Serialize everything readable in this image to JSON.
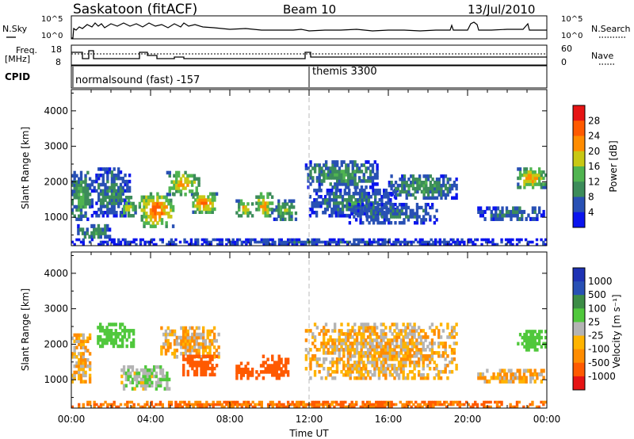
{
  "header": {
    "title": "Saskatoon (fitACF)",
    "beam": "Beam 10",
    "date": "13/Jul/2010"
  },
  "noise_panel": {
    "left_label": "N.Sky",
    "left_ticks": [
      "10^5",
      "10^0"
    ],
    "right_label": "N.Search",
    "right_ticks": [
      "10^5",
      "10^0"
    ]
  },
  "freq_panel": {
    "left_label_1": "Freq.",
    "left_label_2": "[MHz]",
    "left_ticks": [
      "18",
      "8"
    ],
    "right_label": "Nave",
    "right_ticks": [
      "60",
      "0"
    ]
  },
  "cpid_panel": {
    "label": "CPID",
    "programs": [
      {
        "name": "normalsound (fast) -157",
        "start_hour": 0
      },
      {
        "name": "themis 3300",
        "start_hour": 12
      }
    ]
  },
  "x_axis": {
    "label": "Time UT",
    "ticks": [
      "00:00",
      "04:00",
      "08:00",
      "12:00",
      "16:00",
      "20:00",
      "00:00"
    ]
  },
  "colors": {
    "power": [
      "#0a14ee",
      "#2850b4",
      "#3c8c5a",
      "#50b450",
      "#c8c814",
      "#ff8c00",
      "#ff5a00",
      "#e61414"
    ],
    "velocity": [
      "#e61414",
      "#ff5a00",
      "#ff8c00",
      "#ffb400",
      "#b4b4b4",
      "#50c83c",
      "#3c8c46",
      "#2850b4",
      "#1e32b4"
    ]
  },
  "chart_data": [
    {
      "type": "heatmap",
      "name": "power_panel",
      "ylabel": "Slant Range [km]",
      "xlabel": "",
      "y_ticks": [
        1000,
        2000,
        3000,
        4000
      ],
      "ylim": [
        200,
        4600
      ],
      "xlim_hours": [
        0,
        24
      ],
      "colorbar": {
        "label": "Power [dB]",
        "ticks": [
          4,
          8,
          12,
          16,
          20,
          24,
          28
        ],
        "range": [
          0,
          30
        ]
      },
      "echo_regions": [
        {
          "t": [
            0,
            1.0
          ],
          "r": [
            900,
            2300
          ],
          "level": 14
        },
        {
          "t": [
            0.3,
            2.0
          ],
          "r": [
            400,
            800
          ],
          "level": 12
        },
        {
          "t": [
            1.0,
            3.0
          ],
          "r": [
            1000,
            2400
          ],
          "level": 10
        },
        {
          "t": [
            2.5,
            3.3
          ],
          "r": [
            1000,
            1600
          ],
          "level": 18
        },
        {
          "t": [
            3.4,
            5.2
          ],
          "r": [
            700,
            1700
          ],
          "level": 26
        },
        {
          "t": [
            4.8,
            6.5
          ],
          "r": [
            1600,
            2300
          ],
          "level": 22
        },
        {
          "t": [
            6.0,
            7.4
          ],
          "r": [
            1100,
            1700
          ],
          "level": 24
        },
        {
          "t": [
            8.3,
            9.2
          ],
          "r": [
            1000,
            1500
          ],
          "level": 20
        },
        {
          "t": [
            9.3,
            10.2
          ],
          "r": [
            1000,
            1700
          ],
          "level": 22
        },
        {
          "t": [
            10.2,
            11.5
          ],
          "r": [
            900,
            1500
          ],
          "level": 14
        },
        {
          "t": [
            11.8,
            15.5
          ],
          "r": [
            1800,
            2600
          ],
          "level": 12
        },
        {
          "t": [
            12.0,
            16.5
          ],
          "r": [
            1000,
            1800
          ],
          "level": 10
        },
        {
          "t": [
            14.0,
            18.5
          ],
          "r": [
            800,
            1400
          ],
          "level": 9
        },
        {
          "t": [
            16.0,
            19.5
          ],
          "r": [
            1500,
            2200
          ],
          "level": 12
        },
        {
          "t": [
            20.5,
            23.9
          ],
          "r": [
            900,
            1300
          ],
          "level": 10
        },
        {
          "t": [
            22.5,
            24.0
          ],
          "r": [
            1800,
            2400
          ],
          "level": 22
        },
        {
          "t": [
            0,
            24.0
          ],
          "r": [
            200,
            400
          ],
          "level": 6
        }
      ]
    },
    {
      "type": "heatmap",
      "name": "velocity_panel",
      "ylabel": "Slant Range [km]",
      "xlabel": "Time UT",
      "y_ticks": [
        1000,
        2000,
        3000,
        4000
      ],
      "ylim": [
        200,
        4600
      ],
      "xlim_hours": [
        0,
        24
      ],
      "colorbar": {
        "label": "Velocity [m s⁻¹]",
        "ticks": [
          1000,
          500,
          100,
          25,
          -25,
          -100,
          -500,
          -1000
        ]
      },
      "echo_regions": [
        {
          "t": [
            0,
            1.0
          ],
          "r": [
            900,
            2300
          ],
          "v": 0
        },
        {
          "t": [
            1.3,
            3.2
          ],
          "r": [
            1900,
            2600
          ],
          "v": 300
        },
        {
          "t": [
            2.5,
            5.0
          ],
          "r": [
            700,
            1400
          ],
          "v": 80
        },
        {
          "t": [
            4.5,
            7.5
          ],
          "r": [
            1600,
            2500
          ],
          "v": 0
        },
        {
          "t": [
            5.5,
            7.4
          ],
          "r": [
            1100,
            1700
          ],
          "v": -300
        },
        {
          "t": [
            8.3,
            9.2
          ],
          "r": [
            1000,
            1500
          ],
          "v": -400
        },
        {
          "t": [
            9.3,
            11.0
          ],
          "r": [
            1000,
            1700
          ],
          "v": -300
        },
        {
          "t": [
            11.8,
            19.5
          ],
          "r": [
            1000,
            2600
          ],
          "v": 0
        },
        {
          "t": [
            20.5,
            23.9
          ],
          "r": [
            900,
            1300
          ],
          "v": 0
        },
        {
          "t": [
            22.5,
            24.0
          ],
          "r": [
            1800,
            2400
          ],
          "v": 300
        },
        {
          "t": [
            0,
            24.0
          ],
          "r": [
            200,
            400
          ],
          "v": -100
        }
      ]
    }
  ]
}
